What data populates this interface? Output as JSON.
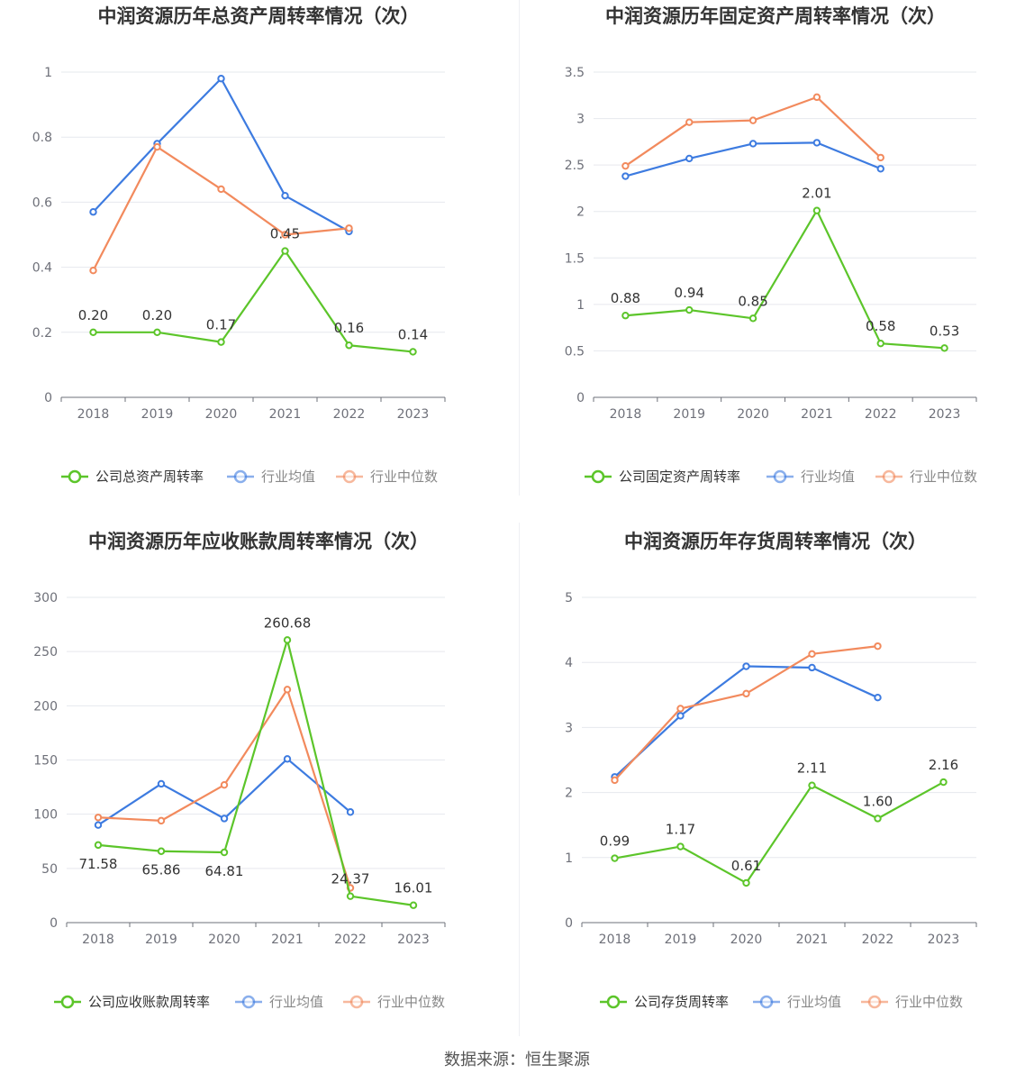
{
  "colors": {
    "company": "#5cc52a",
    "avg": "#3d7be0",
    "median": "#f28a5d"
  },
  "source": "数据来源：恒生聚源",
  "chart_data": [
    {
      "type": "line",
      "title": "中润资源历年总资产周转率情况（次）",
      "x": [
        "2018",
        "2019",
        "2020",
        "2021",
        "2022",
        "2023"
      ],
      "yticks": [
        "0",
        "0.2",
        "0.4",
        "0.6",
        "0.8",
        "1"
      ],
      "ylim": [
        0,
        1
      ],
      "grid": true,
      "legend": "bottom",
      "series": [
        {
          "key": "company",
          "name": "公司总资产周转率",
          "values": [
            0.2,
            0.2,
            0.17,
            0.45,
            0.16,
            0.14
          ],
          "labels": [
            "0.20",
            "0.20",
            "0.17",
            "0.45",
            "0.16",
            "0.14"
          ]
        },
        {
          "key": "avg",
          "name": "行业均值",
          "values": [
            0.57,
            0.78,
            0.98,
            0.62,
            0.51,
            null
          ]
        },
        {
          "key": "median",
          "name": "行业中位数",
          "values": [
            0.39,
            0.77,
            0.64,
            0.5,
            0.52,
            null
          ]
        }
      ]
    },
    {
      "type": "line",
      "title": "中润资源历年固定资产周转率情况（次）",
      "x": [
        "2018",
        "2019",
        "2020",
        "2021",
        "2022",
        "2023"
      ],
      "yticks": [
        "0",
        "0.5",
        "1",
        "1.5",
        "2",
        "2.5",
        "3",
        "3.5"
      ],
      "ylim": [
        0,
        3.5
      ],
      "grid": true,
      "legend": "bottom",
      "series": [
        {
          "key": "company",
          "name": "公司固定资产周转率",
          "values": [
            0.88,
            0.94,
            0.85,
            2.01,
            0.58,
            0.53
          ],
          "labels": [
            "0.88",
            "0.94",
            "0.85",
            "2.01",
            "0.58",
            "0.53"
          ]
        },
        {
          "key": "avg",
          "name": "行业均值",
          "values": [
            2.38,
            2.57,
            2.73,
            2.74,
            2.46,
            null
          ]
        },
        {
          "key": "median",
          "name": "行业中位数",
          "values": [
            2.49,
            2.96,
            2.98,
            3.23,
            2.58,
            null
          ]
        }
      ]
    },
    {
      "type": "line",
      "title": "中润资源历年应收账款周转率情况（次）",
      "x": [
        "2018",
        "2019",
        "2020",
        "2021",
        "2022",
        "2023"
      ],
      "yticks": [
        "0",
        "50",
        "100",
        "150",
        "200",
        "250",
        "300"
      ],
      "ylim": [
        0,
        300
      ],
      "grid": true,
      "legend": "bottom",
      "series": [
        {
          "key": "company",
          "name": "公司应收账款周转率",
          "values": [
            71.58,
            65.86,
            64.81,
            260.68,
            24.37,
            16.01
          ],
          "labels": [
            "71.58",
            "65.86",
            "64.81",
            "260.68",
            "24.37",
            "16.01"
          ]
        },
        {
          "key": "avg",
          "name": "行业均值",
          "values": [
            90,
            128,
            96,
            151,
            102,
            null
          ]
        },
        {
          "key": "median",
          "name": "行业中位数",
          "values": [
            97,
            94,
            127,
            215,
            32,
            null
          ]
        }
      ]
    },
    {
      "type": "line",
      "title": "中润资源历年存货周转率情况（次）",
      "x": [
        "2018",
        "2019",
        "2020",
        "2021",
        "2022",
        "2023"
      ],
      "yticks": [
        "0",
        "1",
        "2",
        "3",
        "4",
        "5"
      ],
      "ylim": [
        0,
        5
      ],
      "grid": true,
      "legend": "bottom",
      "series": [
        {
          "key": "company",
          "name": "公司存货周转率",
          "values": [
            0.99,
            1.17,
            0.61,
            2.11,
            1.6,
            2.16
          ],
          "labels": [
            "0.99",
            "1.17",
            "0.61",
            "2.11",
            "1.60",
            "2.16"
          ]
        },
        {
          "key": "avg",
          "name": "行业均值",
          "values": [
            2.24,
            3.18,
            3.94,
            3.92,
            3.46,
            null
          ]
        },
        {
          "key": "median",
          "name": "行业中位数",
          "values": [
            2.19,
            3.29,
            3.52,
            4.13,
            4.25,
            null
          ]
        }
      ]
    }
  ]
}
